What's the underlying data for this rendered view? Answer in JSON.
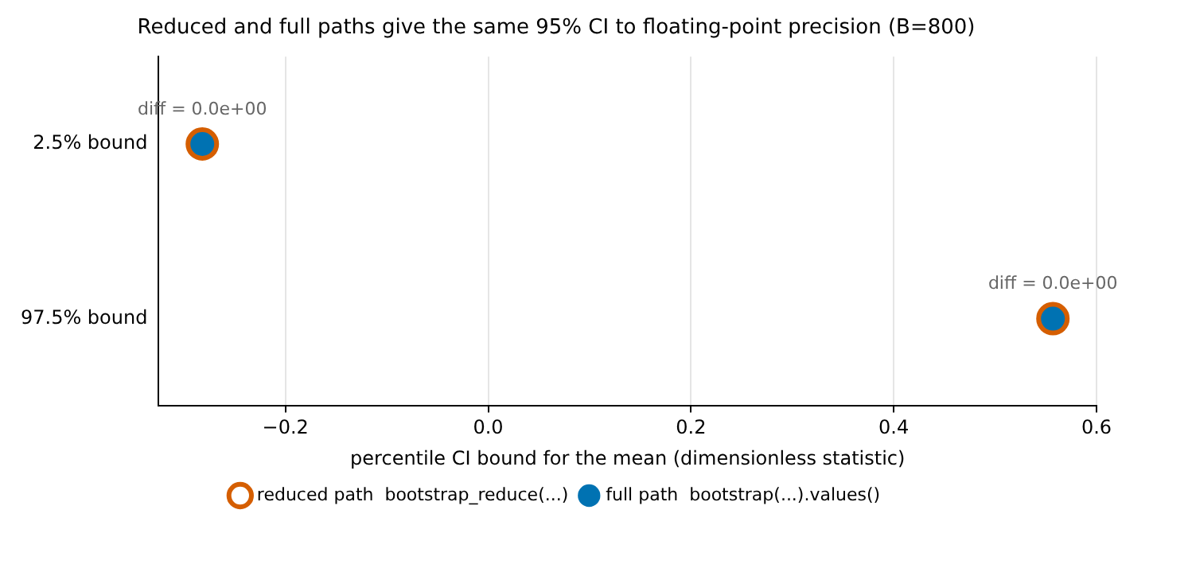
{
  "chart_data": {
    "type": "scatter",
    "orientation": "horizontal",
    "title": "Reduced and full paths give the same 95% CI to floating-point precision (B=800)",
    "xlabel": "percentile CI bound for the mean (dimensionless statistic)",
    "categories": [
      "2.5% bound",
      "97.5% bound"
    ],
    "series": [
      {
        "name": "full path  bootstrap(...).values()",
        "color": "#0072b2",
        "values": [
          -0.282,
          0.557
        ],
        "marker": "circle"
      },
      {
        "name": "reduced path  bootstrap_reduce(...)",
        "color": "#d55e00",
        "values": [
          -0.282,
          0.557
        ],
        "marker": "circle"
      }
    ],
    "xlim": [
      -0.325,
      0.6
    ],
    "xticks": [
      {
        "value": -0.2,
        "label": "−0.2"
      },
      {
        "value": 0,
        "label": "0.0"
      },
      {
        "value": 0.2,
        "label": "0.2"
      },
      {
        "value": 0.4,
        "label": "0.4"
      },
      {
        "value": 0.6,
        "label": "0.6"
      }
    ],
    "grid": "x",
    "legend": "bottom",
    "annotations": [
      {
        "text": "diff = 0.0e+00",
        "x": -0.282,
        "y": "2.5% bound"
      },
      {
        "text": "diff = 0.0e+00",
        "x": 0.557,
        "y": "97.5% bound"
      }
    ]
  }
}
